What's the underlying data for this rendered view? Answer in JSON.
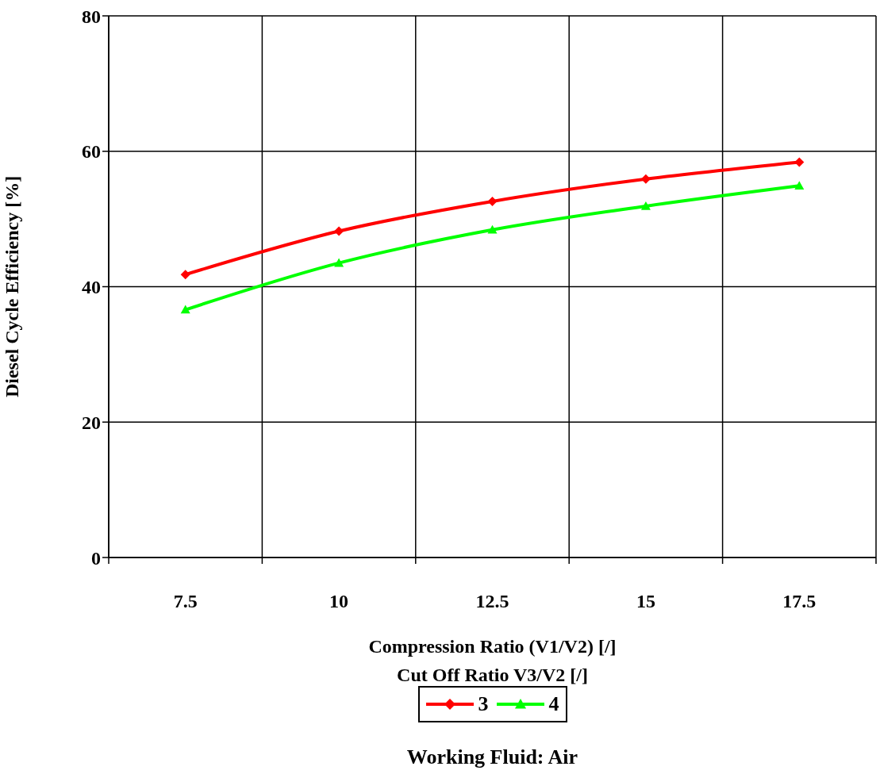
{
  "chart_data": {
    "type": "line",
    "xlabel": "Compression Ratio (V1/V2) [/]\nCut Off Ratio V3/V2 [/]",
    "ylabel": "Diesel Cycle Efficiency [%]",
    "categories": [
      "7.5",
      "10",
      "12.5",
      "15",
      "17.5"
    ],
    "ylim": [
      0,
      80
    ],
    "yticks": [
      0,
      20,
      40,
      60,
      80
    ],
    "grid": true,
    "legend": "bottom",
    "legend_title": null,
    "series": [
      {
        "name": "3",
        "color": "#ff0000",
        "marker": "diamond",
        "values": [
          41.8,
          48.2,
          52.6,
          55.9,
          58.4
        ]
      },
      {
        "name": "4",
        "color": "#00ff00",
        "marker": "triangle",
        "values": [
          36.6,
          43.5,
          48.4,
          51.9,
          54.9
        ]
      }
    ],
    "annotations": [
      "Working Fluid:  Air"
    ]
  }
}
